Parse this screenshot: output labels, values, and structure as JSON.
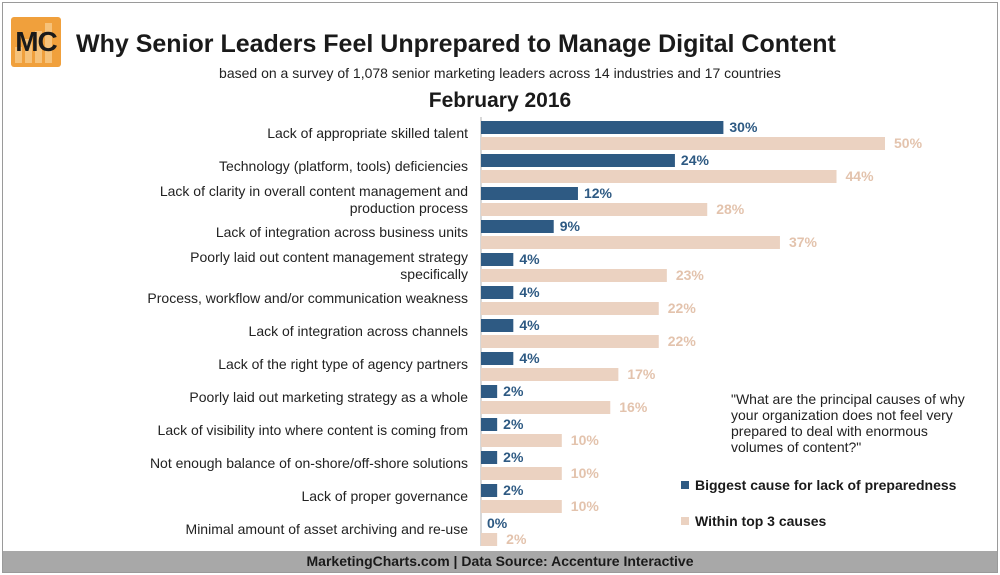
{
  "header": {
    "logo_text": "MC",
    "title": "Why Senior Leaders Feel Unprepared to Manage Digital Content",
    "subtitle": "based on a survey of 1,078 senior marketing leaders across 14 industries and 17 countries",
    "period": "February 2016"
  },
  "question": "\"What are the principal causes of why your organization does not feel very prepared to deal with enormous volumes of content?\"",
  "legend": [
    {
      "label": "Biggest cause for lack of preparedness",
      "color": "#2e5a83"
    },
    {
      "label": "Within top 3 causes",
      "color": "#ebd2c1"
    }
  ],
  "footer": "MarketingCharts.com | Data Source: Accenture Interactive",
  "colors": {
    "series1": "#2e5a83",
    "series2": "#ebd2c1",
    "label1": "#2e5a83",
    "label2": "#e3c3ad"
  },
  "chart_data": {
    "type": "bar",
    "orientation": "horizontal",
    "categories": [
      "Lack of appropriate skilled talent",
      "Technology (platform, tools) deficiencies",
      "Lack of clarity in overall content management and production process",
      "Lack of integration across business units",
      "Poorly laid out content management strategy specifically",
      "Process, workflow and/or communication weakness",
      "Lack of integration across channels",
      "Lack of the right type of agency partners",
      "Poorly laid out marketing strategy as a whole",
      "Lack of visibility into where content is coming from",
      "Not enough balance of on-shore/off-shore solutions",
      "Lack of proper governance",
      "Minimal amount of asset archiving and re-use"
    ],
    "series": [
      {
        "name": "Biggest cause for lack of preparedness",
        "values": [
          30,
          24,
          12,
          9,
          4,
          4,
          4,
          4,
          2,
          2,
          2,
          2,
          0
        ]
      },
      {
        "name": "Within top 3 causes",
        "values": [
          50,
          44,
          28,
          37,
          23,
          22,
          22,
          17,
          16,
          10,
          10,
          10,
          2
        ]
      }
    ],
    "value_suffix": "%",
    "xlim": [
      0,
      50
    ],
    "grid": false,
    "legend_position": "bottom-right"
  }
}
